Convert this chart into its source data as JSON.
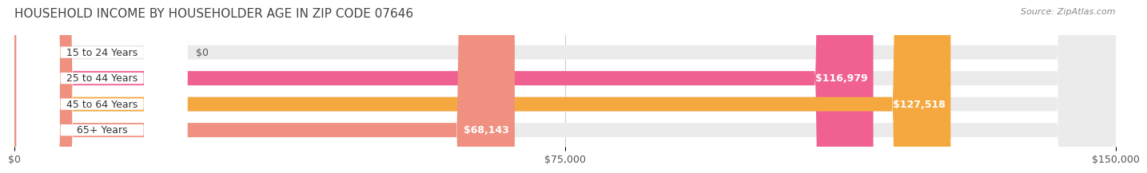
{
  "title": "HOUSEHOLD INCOME BY HOUSEHOLDER AGE IN ZIP CODE 07646",
  "source": "Source: ZipAtlas.com",
  "categories": [
    "15 to 24 Years",
    "25 to 44 Years",
    "45 to 64 Years",
    "65+ Years"
  ],
  "values": [
    0,
    116979,
    127518,
    68143
  ],
  "bar_colors": [
    "#a8a8d8",
    "#f06090",
    "#f5a840",
    "#f09080"
  ],
  "bar_bg_color": "#f0f0f0",
  "background_color": "#ffffff",
  "label_bg_color": "#ffffff",
  "xlim": [
    0,
    150000
  ],
  "xticks": [
    0,
    75000,
    150000
  ],
  "xtick_labels": [
    "$0",
    "$75,000",
    "$150,000"
  ],
  "value_labels": [
    "$0",
    "$116,979",
    "$127,518",
    "$68,143"
  ],
  "title_fontsize": 11,
  "source_fontsize": 8,
  "tick_fontsize": 9,
  "bar_label_fontsize": 9,
  "cat_fontsize": 9
}
